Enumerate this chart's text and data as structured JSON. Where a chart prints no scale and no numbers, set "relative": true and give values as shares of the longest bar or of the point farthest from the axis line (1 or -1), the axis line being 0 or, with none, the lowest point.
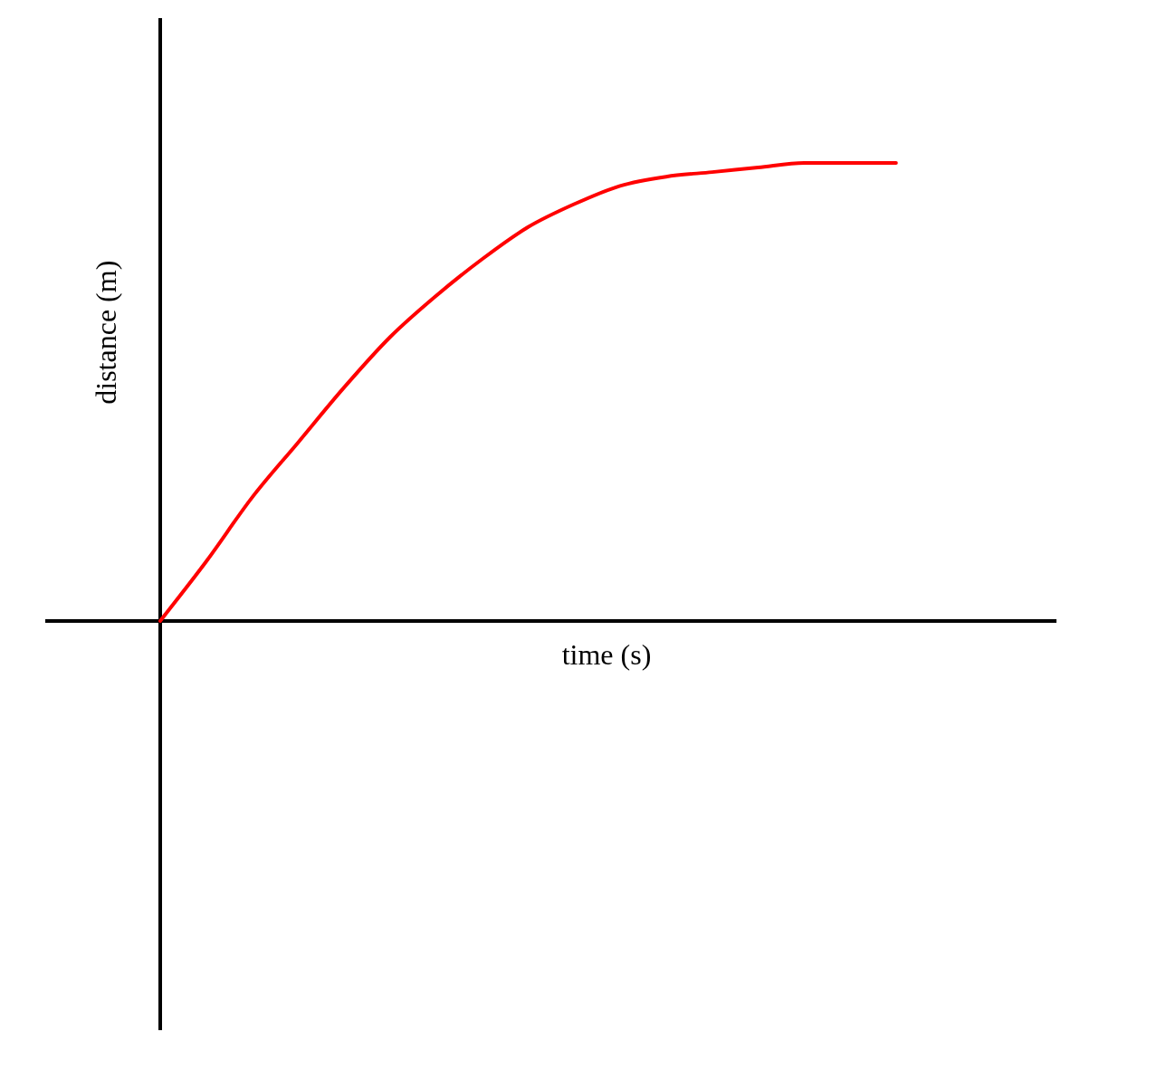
{
  "chart_data": {
    "type": "line",
    "relative": true,
    "xlabel": "time (s)",
    "ylabel": "distance (m)",
    "marker": "none",
    "line_style": "solid",
    "categories": [
      null,
      null,
      null,
      null,
      null,
      null,
      null,
      null,
      null,
      null,
      null,
      null,
      null,
      null,
      null,
      null,
      null
    ],
    "series": [
      {
        "color": "#ff0000",
        "values": [
          0,
          0.13,
          0.27,
          0.39,
          0.51,
          0.62,
          0.71,
          0.79,
          0.86,
          0.91,
          0.95,
          0.97,
          0.98,
          0.99,
          1,
          1,
          1
        ]
      }
    ]
  }
}
